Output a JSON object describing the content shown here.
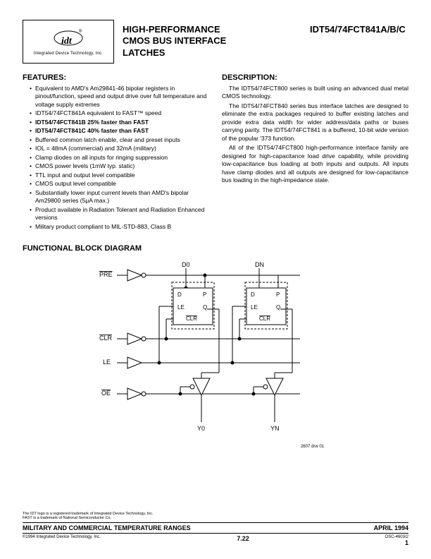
{
  "header": {
    "company": "Integrated Device Technology, Inc.",
    "title_l1": "HIGH-PERFORMANCE",
    "title_l2": "CMOS BUS INTERFACE",
    "title_l3": "LATCHES",
    "partnum": "IDT54/74FCT841A/B/C"
  },
  "features": {
    "heading": "FEATURES:",
    "items": [
      {
        "text": "Equivalent to AMD's Am29841-46 bipolar registers in pinout/function, speed and output drive over full temperature and voltage supply extremes",
        "bold": false
      },
      {
        "text": "IDT54/74FCT841A equivalent to FAST™ speed",
        "bold": false
      },
      {
        "text": "IDT54/74FCT841B 25% faster than FAST",
        "bold": true
      },
      {
        "text": "IDT54/74FCT841C 40% faster than FAST",
        "bold": true
      },
      {
        "text": "Buffered common latch enable, clear and preset inputs",
        "bold": false
      },
      {
        "text": "IOL = 48mA (commercial) and 32mA (military)",
        "bold": false
      },
      {
        "text": "Clamp diodes on all inputs for ringing suppression",
        "bold": false
      },
      {
        "text": "CMOS power levels (1mW typ. static)",
        "bold": false
      },
      {
        "text": "TTL input and output level compatible",
        "bold": false
      },
      {
        "text": "CMOS output level compatible",
        "bold": false
      },
      {
        "text": "Substantially lower input current levels than AMD's bipolar Am29800 series (5μA max.)",
        "bold": false
      },
      {
        "text": "Product available in Radiation Tolerant and Radiation Enhanced versions",
        "bold": false
      },
      {
        "text": "Military product compliant to MIL-STD-883, Class B",
        "bold": false
      }
    ]
  },
  "description": {
    "heading": "DESCRIPTION:",
    "paragraphs": [
      "The IDT54/74FCT800 series is built using an advanced dual metal CMOS technology.",
      "The IDT54/74FCT840 series bus interface latches are designed to eliminate the extra packages required to buffer existing latches and provide extra data width for wider address/data paths or buses carrying parity. The IDT54/74FCT841 is a buffered, 10-bit wide version of the popular '373 function.",
      "All of the IDT54/74FCT800 high-performance interface family are designed for high-capacitance load drive capability, while providing low-capacitance bus loading at both inputs and outputs. All inputs have clamp diodes and all outputs are designed for low-capacitance bus loading in the high-impedance state."
    ]
  },
  "diagram": {
    "heading": "FUNCTIONAL BLOCK DIAGRAM",
    "signals": {
      "pre": "PRE",
      "clr": "CLR",
      "le": "LE",
      "oe": "OE",
      "d0": "D0",
      "dn": "DN",
      "y0": "Y0",
      "yn": "YN"
    },
    "latch_pins": {
      "d": "D",
      "p": "P",
      "le": "LE",
      "q": "Q",
      "clr": "CLR"
    },
    "caption": "2607 drw 01",
    "colors": {
      "stroke": "#000000",
      "bg": "#ffffff"
    },
    "stroke_width": 1
  },
  "footer": {
    "trademark1": "The IDT logo is a registered trademark of Integrated Device Technology, Inc.",
    "trademark2": "FAST is a trademark of National Semiconductor Co.",
    "bar_left": "MILITARY AND COMMERCIAL TEMPERATURE RANGES",
    "bar_right": "APRIL 1994",
    "copyright": "©1994 Integrated Device Technology, Inc.",
    "page_center": "7.22",
    "docnum": "DSC-4603/2",
    "pagenum": "1"
  }
}
